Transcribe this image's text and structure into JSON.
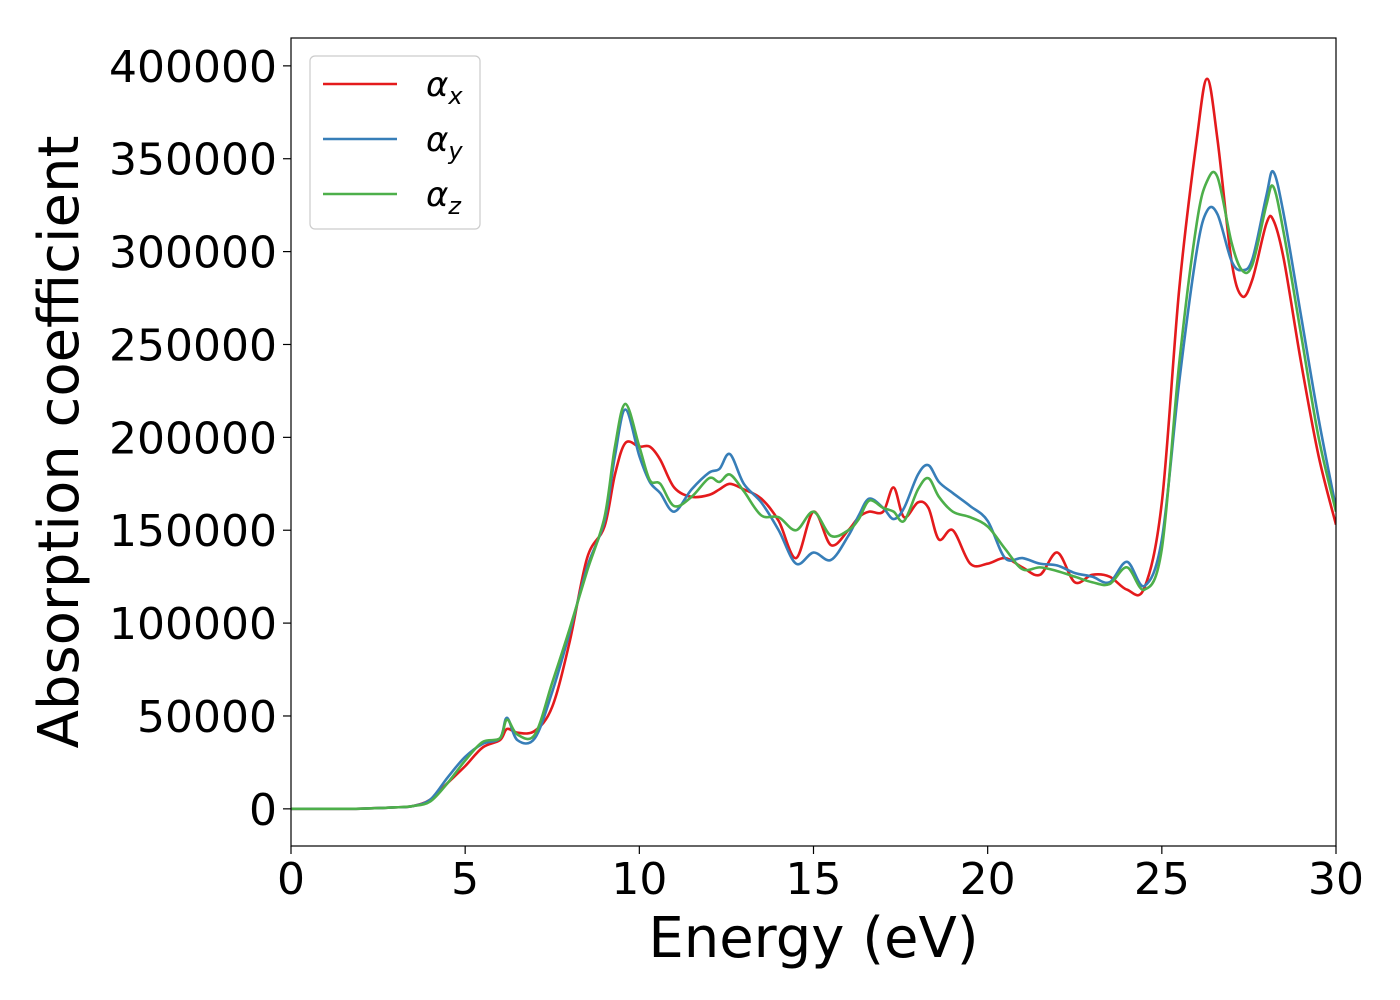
{
  "chart_data": {
    "type": "line",
    "xlabel": "Energy (eV)",
    "ylabel": "Absorption coefficient",
    "xlim": [
      0,
      30
    ],
    "ylim": [
      -20000,
      415000
    ],
    "x_ticks": [
      0,
      5,
      10,
      15,
      20,
      25,
      30
    ],
    "y_ticks": [
      0,
      50000,
      100000,
      150000,
      200000,
      250000,
      300000,
      350000,
      400000
    ],
    "grid": false,
    "legend_position": "top-left",
    "x": [
      0,
      1,
      2,
      3,
      3.5,
      4,
      4.5,
      5,
      5.5,
      6,
      6.2,
      6.5,
      7,
      7.5,
      8,
      8.5,
      9,
      9.3,
      9.6,
      10,
      10.3,
      10.6,
      11,
      11.5,
      12,
      12.3,
      12.6,
      13,
      13.5,
      14,
      14.5,
      15,
      15.5,
      16,
      16.3,
      16.6,
      17,
      17.3,
      17.6,
      18,
      18.3,
      18.6,
      19,
      19.5,
      20,
      20.5,
      21,
      21.5,
      22,
      22.5,
      23,
      23.5,
      24,
      24.5,
      25,
      25.5,
      26,
      26.3,
      26.6,
      27,
      27.3,
      27.6,
      28,
      28.2,
      28.5,
      29,
      29.5,
      30
    ],
    "series": [
      {
        "name": "αx",
        "color": "#e41a1c",
        "values": [
          0,
          0,
          100,
          800,
          1500,
          5000,
          14000,
          23000,
          33000,
          37000,
          43000,
          41000,
          42000,
          55000,
          90000,
          135000,
          152000,
          180000,
          197000,
          195000,
          195000,
          188000,
          173000,
          168000,
          169000,
          172000,
          175000,
          172000,
          167000,
          155000,
          135000,
          160000,
          142000,
          150000,
          157000,
          160000,
          160000,
          173000,
          157000,
          165000,
          162000,
          145000,
          150000,
          132000,
          132000,
          135000,
          130000,
          126000,
          138000,
          122000,
          126000,
          125000,
          118000,
          119000,
          165000,
          280000,
          360000,
          393000,
          360000,
          295000,
          276000,
          285000,
          315000,
          317000,
          296000,
          240000,
          190000,
          153000
        ]
      },
      {
        "name": "αy",
        "color": "#377eb8",
        "values": [
          0,
          0,
          100,
          800,
          1500,
          5000,
          17000,
          28000,
          35000,
          38000,
          49000,
          37000,
          38000,
          63000,
          95000,
          130000,
          155000,
          190000,
          215000,
          190000,
          176000,
          170000,
          160000,
          172000,
          181000,
          183000,
          191000,
          175000,
          165000,
          150000,
          132000,
          138000,
          134000,
          147000,
          158000,
          167000,
          162000,
          156000,
          162000,
          180000,
          185000,
          176000,
          170000,
          163000,
          155000,
          135000,
          135000,
          132000,
          131000,
          127000,
          125000,
          122000,
          133000,
          120000,
          145000,
          230000,
          300000,
          322000,
          320000,
          295000,
          290000,
          296000,
          330000,
          343000,
          320000,
          265000,
          210000,
          162000
        ]
      },
      {
        "name": "αz",
        "color": "#4daf4a",
        "values": [
          0,
          0,
          100,
          800,
          1500,
          4000,
          14000,
          26000,
          36000,
          38000,
          48000,
          40000,
          40000,
          68000,
          97000,
          128000,
          157000,
          195000,
          218000,
          195000,
          177000,
          175000,
          163000,
          168000,
          178000,
          176000,
          180000,
          171000,
          158000,
          157000,
          150000,
          160000,
          147000,
          150000,
          156000,
          166000,
          162000,
          160000,
          155000,
          172000,
          178000,
          168000,
          160000,
          157000,
          152000,
          140000,
          129000,
          130000,
          128000,
          125000,
          122000,
          121000,
          130000,
          118000,
          140000,
          240000,
          315000,
          338000,
          340000,
          305000,
          290000,
          293000,
          325000,
          335000,
          310000,
          255000,
          200000,
          160000
        ]
      }
    ]
  }
}
